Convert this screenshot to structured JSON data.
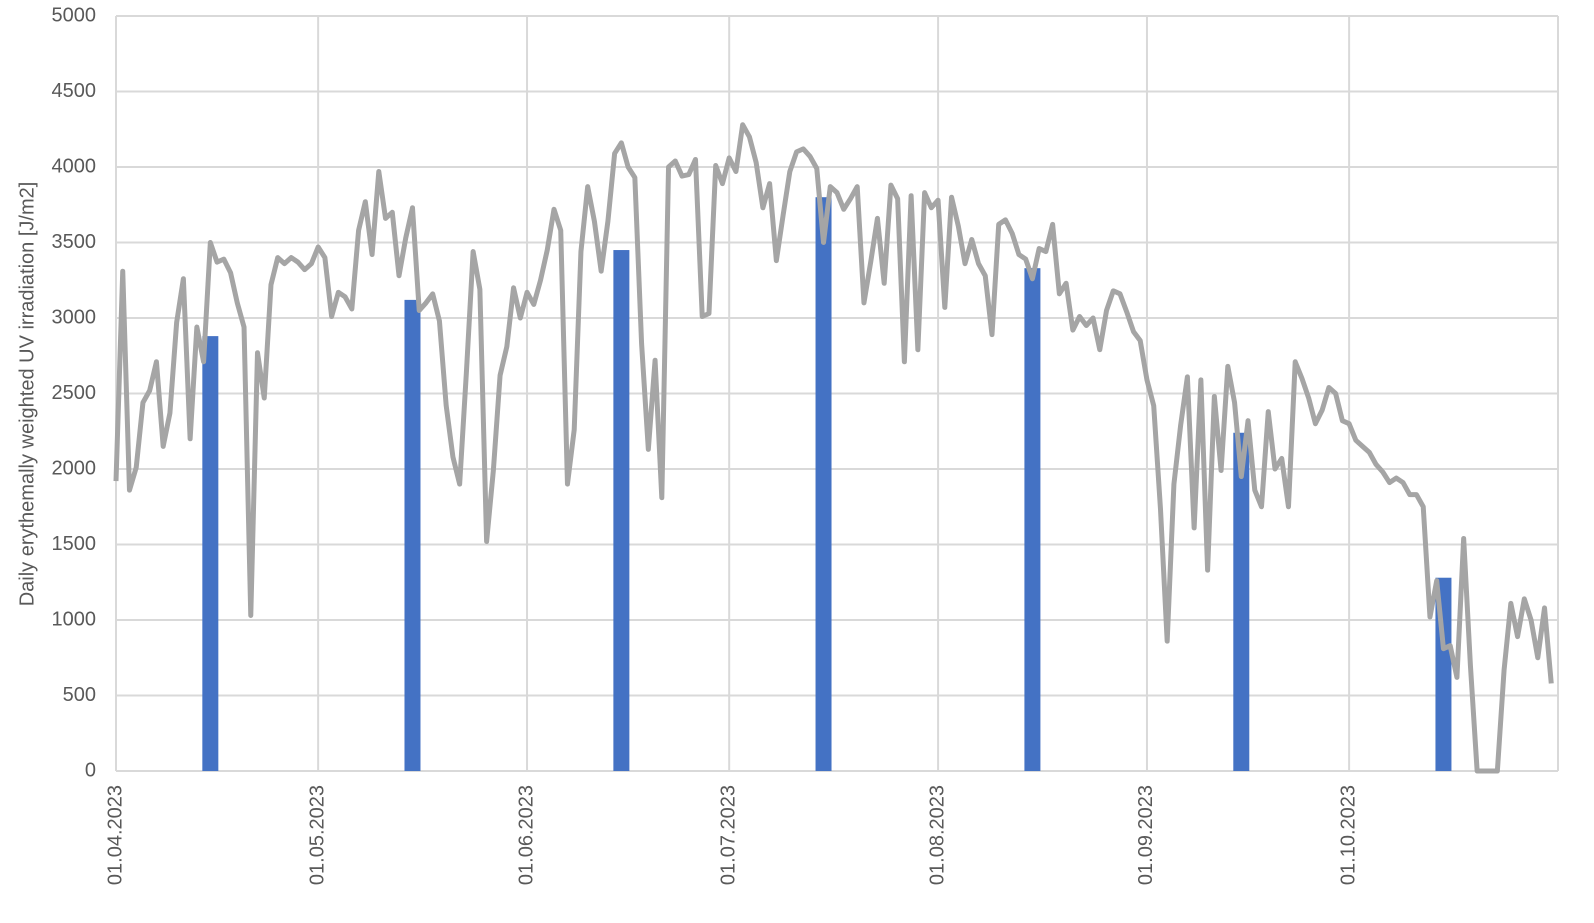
{
  "chart_data": {
    "type": "combo",
    "y_label": "Daily erythemally weighted UV irradiation [J/m2]",
    "ylim": [
      0,
      5000
    ],
    "yticks": [
      0,
      500,
      1000,
      1500,
      2000,
      2500,
      3000,
      3500,
      4000,
      4500,
      5000
    ],
    "xlim": [
      "01.04.2023",
      "01.11.2023"
    ],
    "xticks": [
      "01.04.2023",
      "01.05.2023",
      "01.06.2023",
      "01.07.2023",
      "01.08.2023",
      "01.09.2023",
      "01.10.2023"
    ],
    "grid": true,
    "series": [
      {
        "type": "bar",
        "color": "#4472c4",
        "x": [
          "15.04.2023",
          "15.05.2023",
          "15.06.2023",
          "15.07.2023",
          "15.08.2023",
          "15.09.2023",
          "15.10.2023"
        ],
        "values": [
          2880,
          3120,
          3450,
          3800,
          3330,
          2240,
          1280
        ]
      },
      {
        "type": "line",
        "color": "#a5a5a5",
        "x": [
          "01.04.2023",
          "02.04.2023",
          "03.04.2023",
          "04.04.2023",
          "05.04.2023",
          "06.04.2023",
          "07.04.2023",
          "08.04.2023",
          "09.04.2023",
          "10.04.2023",
          "11.04.2023",
          "12.04.2023",
          "13.04.2023",
          "14.04.2023",
          "15.04.2023",
          "16.04.2023",
          "17.04.2023",
          "18.04.2023",
          "19.04.2023",
          "20.04.2023",
          "21.04.2023",
          "22.04.2023",
          "23.04.2023",
          "24.04.2023",
          "25.04.2023",
          "26.04.2023",
          "27.04.2023",
          "28.04.2023",
          "29.04.2023",
          "30.04.2023",
          "01.05.2023",
          "02.05.2023",
          "03.05.2023",
          "04.05.2023",
          "05.05.2023",
          "06.05.2023",
          "07.05.2023",
          "08.05.2023",
          "09.05.2023",
          "10.05.2023",
          "11.05.2023",
          "12.05.2023",
          "13.05.2023",
          "14.05.2023",
          "15.05.2023",
          "16.05.2023",
          "17.05.2023",
          "18.05.2023",
          "19.05.2023",
          "20.05.2023",
          "21.05.2023",
          "22.05.2023",
          "23.05.2023",
          "24.05.2023",
          "25.05.2023",
          "26.05.2023",
          "27.05.2023",
          "28.05.2023",
          "29.05.2023",
          "30.05.2023",
          "31.05.2023",
          "01.06.2023",
          "02.06.2023",
          "03.06.2023",
          "04.06.2023",
          "05.06.2023",
          "06.06.2023",
          "07.06.2023",
          "08.06.2023",
          "09.06.2023",
          "10.06.2023",
          "11.06.2023",
          "12.06.2023",
          "13.06.2023",
          "14.06.2023",
          "15.06.2023",
          "16.06.2023",
          "17.06.2023",
          "18.06.2023",
          "19.06.2023",
          "20.06.2023",
          "21.06.2023",
          "22.06.2023",
          "23.06.2023",
          "24.06.2023",
          "25.06.2023",
          "26.06.2023",
          "27.06.2023",
          "28.06.2023",
          "29.06.2023",
          "30.06.2023",
          "01.07.2023",
          "02.07.2023",
          "03.07.2023",
          "04.07.2023",
          "05.07.2023",
          "06.07.2023",
          "07.07.2023",
          "08.07.2023",
          "09.07.2023",
          "10.07.2023",
          "11.07.2023",
          "12.07.2023",
          "13.07.2023",
          "14.07.2023",
          "15.07.2023",
          "16.07.2023",
          "17.07.2023",
          "18.07.2023",
          "19.07.2023",
          "20.07.2023",
          "21.07.2023",
          "22.07.2023",
          "23.07.2023",
          "24.07.2023",
          "25.07.2023",
          "26.07.2023",
          "27.07.2023",
          "28.07.2023",
          "29.07.2023",
          "30.07.2023",
          "31.07.2023",
          "01.08.2023",
          "02.08.2023",
          "03.08.2023",
          "04.08.2023",
          "05.08.2023",
          "06.08.2023",
          "07.08.2023",
          "08.08.2023",
          "09.08.2023",
          "10.08.2023",
          "11.08.2023",
          "12.08.2023",
          "13.08.2023",
          "14.08.2023",
          "15.08.2023",
          "16.08.2023",
          "17.08.2023",
          "18.08.2023",
          "19.08.2023",
          "20.08.2023",
          "21.08.2023",
          "22.08.2023",
          "23.08.2023",
          "24.08.2023",
          "25.08.2023",
          "26.08.2023",
          "27.08.2023",
          "28.08.2023",
          "29.08.2023",
          "30.08.2023",
          "31.08.2023",
          "01.09.2023",
          "02.09.2023",
          "03.09.2023",
          "04.09.2023",
          "05.09.2023",
          "06.09.2023",
          "07.09.2023",
          "08.09.2023",
          "09.09.2023",
          "10.09.2023",
          "11.09.2023",
          "12.09.2023",
          "13.09.2023",
          "14.09.2023",
          "15.09.2023",
          "16.09.2023",
          "17.09.2023",
          "18.09.2023",
          "19.09.2023",
          "20.09.2023",
          "21.09.2023",
          "22.09.2023",
          "23.09.2023",
          "24.09.2023",
          "25.09.2023",
          "26.09.2023",
          "27.09.2023",
          "28.09.2023",
          "29.09.2023",
          "30.09.2023",
          "01.10.2023",
          "02.10.2023",
          "03.10.2023",
          "04.10.2023",
          "05.10.2023",
          "06.10.2023",
          "07.10.2023",
          "08.10.2023",
          "09.10.2023",
          "10.10.2023",
          "11.10.2023",
          "12.10.2023",
          "13.10.2023",
          "14.10.2023",
          "15.10.2023",
          "16.10.2023",
          "17.10.2023",
          "18.10.2023",
          "19.10.2023",
          "20.10.2023",
          "21.10.2023",
          "22.10.2023",
          "23.10.2023",
          "24.10.2023",
          "25.10.2023",
          "26.10.2023",
          "27.10.2023",
          "28.10.2023",
          "29.10.2023",
          "30.10.2023",
          "31.10.2023"
        ],
        "values": [
          1920,
          3310,
          1860,
          2010,
          2440,
          2520,
          2710,
          2150,
          2370,
          2970,
          3260,
          2200,
          2940,
          2710,
          3500,
          3370,
          3390,
          3300,
          3100,
          2940,
          1030,
          2770,
          2470,
          3220,
          3400,
          3360,
          3400,
          3370,
          3320,
          3360,
          3470,
          3400,
          3010,
          3170,
          3140,
          3060,
          3580,
          3770,
          3420,
          3970,
          3660,
          3700,
          3280,
          3530,
          3730,
          3050,
          3100,
          3160,
          2980,
          2420,
          2080,
          1900,
          2640,
          3440,
          3190,
          1520,
          1990,
          2620,
          2810,
          3200,
          3000,
          3170,
          3090,
          3250,
          3450,
          3720,
          3580,
          1900,
          2260,
          3440,
          3870,
          3640,
          3310,
          3640,
          4090,
          4160,
          4000,
          3930,
          2830,
          2130,
          2720,
          1810,
          4000,
          4040,
          3940,
          3950,
          4050,
          3010,
          3030,
          4010,
          3890,
          4060,
          3970,
          4280,
          4200,
          4030,
          3730,
          3890,
          3380,
          3680,
          3970,
          4100,
          4120,
          4070,
          3990,
          3500,
          3870,
          3830,
          3720,
          3790,
          3870,
          3100,
          3370,
          3660,
          3230,
          3880,
          3790,
          2710,
          3810,
          2790,
          3830,
          3730,
          3780,
          3070,
          3800,
          3610,
          3360,
          3520,
          3360,
          3280,
          2890,
          3620,
          3650,
          3560,
          3420,
          3390,
          3260,
          3460,
          3440,
          3620,
          3160,
          3230,
          2920,
          3010,
          2950,
          3000,
          2790,
          3050,
          3180,
          3160,
          3040,
          2910,
          2850,
          2590,
          2420,
          1740,
          860,
          1900,
          2290,
          2610,
          1610,
          2590,
          1330,
          2480,
          1990,
          2680,
          2440,
          1950,
          2320,
          1860,
          1750,
          2380,
          2000,
          2070,
          1750,
          2710,
          2600,
          2470,
          2300,
          2390,
          2540,
          2500,
          2320,
          2300,
          2190,
          2150,
          2110,
          2030,
          1980,
          1910,
          1940,
          1910,
          1830,
          1830,
          1750,
          1020,
          1260,
          810,
          830,
          620,
          1540,
          700,
          0,
          0,
          0,
          0,
          670,
          1110,
          890,
          1140,
          1000,
          750,
          1080,
          580
        ]
      }
    ]
  }
}
